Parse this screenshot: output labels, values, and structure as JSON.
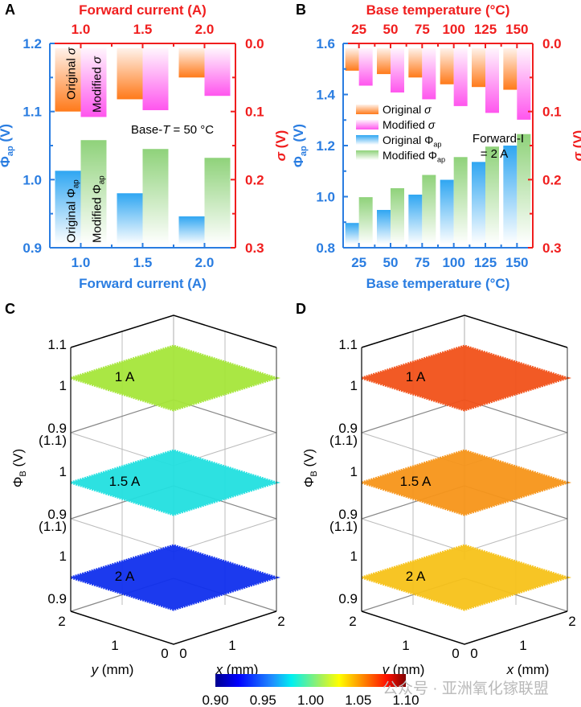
{
  "chart_data": [
    {
      "panel": "A",
      "type": "bar",
      "title": "",
      "top_xlabel": "Forward current (A)",
      "xlabel": "Forward current (A)",
      "ylabel_left": "Φap (V)",
      "ylabel_right": "σ (V)",
      "categories": [
        "1.0",
        "1.5",
        "2.0"
      ],
      "ylim_left": [
        0.9,
        1.2
      ],
      "yticks_left": [
        "0.9",
        "1.0",
        "1.1",
        "1.2"
      ],
      "ylim_right_inverted": [
        0.0,
        0.3
      ],
      "yticks_right": [
        "0.0",
        "0.1",
        "0.2",
        "0.3"
      ],
      "annotation": "Base-T = 50 °C",
      "series": [
        {
          "name": "Original σ",
          "axis": "right",
          "values": [
            0.1,
            0.082,
            0.05
          ],
          "color": "#ff7a1a"
        },
        {
          "name": "Modified σ",
          "axis": "right",
          "values": [
            0.108,
            0.098,
            0.077
          ],
          "color": "#ff55ee"
        },
        {
          "name": "Original Φap",
          "axis": "left",
          "values": [
            1.013,
            0.98,
            0.946
          ],
          "color": "#2fa6f2"
        },
        {
          "name": "Modified Φap",
          "axis": "left",
          "values": [
            1.058,
            1.045,
            1.032
          ],
          "color": "#8fd27a"
        }
      ],
      "inline_labels": [
        "Original σ",
        "Modified σ",
        "Original Φap",
        "Modified Φap"
      ]
    },
    {
      "panel": "B",
      "type": "bar",
      "top_xlabel": "Base temperature (°C)",
      "xlabel": "Base temperature (°C)",
      "ylabel_left": "Φap (V)",
      "ylabel_right": "σ (V)",
      "categories": [
        "25",
        "50",
        "75",
        "100",
        "125",
        "150"
      ],
      "ylim_left": [
        0.8,
        1.6
      ],
      "yticks_left": [
        "0.8",
        "1.0",
        "1.2",
        "1.4",
        "1.6"
      ],
      "ylim_right_inverted": [
        0.0,
        0.3
      ],
      "yticks_right": [
        "0.0",
        "0.1",
        "0.2",
        "0.3"
      ],
      "annotation": [
        "Forward-I",
        "= 2 A"
      ],
      "legend": [
        "Original σ",
        "Modified σ",
        "Original Φap",
        "Modified Φap"
      ],
      "series": [
        {
          "name": "Original σ",
          "axis": "right",
          "values": [
            0.04,
            0.045,
            0.05,
            0.06,
            0.064,
            0.068
          ],
          "color": "#ff7a1a"
        },
        {
          "name": "Modified σ",
          "axis": "right",
          "values": [
            0.062,
            0.072,
            0.082,
            0.092,
            0.102,
            0.112
          ],
          "color": "#ff55ee"
        },
        {
          "name": "Original Φap",
          "axis": "left",
          "values": [
            0.897,
            0.948,
            1.008,
            1.066,
            1.136,
            1.2
          ],
          "color": "#2fa6f2"
        },
        {
          "name": "Modified Φap",
          "axis": "left",
          "values": [
            0.998,
            1.033,
            1.085,
            1.155,
            1.196,
            1.245
          ],
          "color": "#8fd27a"
        }
      ]
    },
    {
      "panel": "C",
      "type": "surface3d",
      "zlabel": "ΦB (V)",
      "xlabel": "x (mm)",
      "ylabel": "y (mm)",
      "xticks": [
        "0",
        "1",
        "2"
      ],
      "yticks": [
        "0",
        "1",
        "2"
      ],
      "zticks": [
        "1.1",
        "1",
        "0.9\n(1.1)",
        "1",
        "0.9\n(1.1)",
        "1",
        "0.9"
      ],
      "layers": [
        {
          "label": "1 A",
          "mean": 1.02,
          "color": "#a6e63a"
        },
        {
          "label": "1.5 A",
          "mean": 0.985,
          "color": "#22e0e0"
        },
        {
          "label": "2 A",
          "mean": 0.91,
          "color": "#1030ee"
        }
      ]
    },
    {
      "panel": "D",
      "type": "surface3d",
      "zlabel": "ΦB (V)",
      "xlabel": "x (mm)",
      "ylabel": "y (mm)",
      "xticks": [
        "0",
        "1",
        "2"
      ],
      "yticks": [
        "0",
        "1",
        "2"
      ],
      "layers": [
        {
          "label": "1 A",
          "mean": 1.085,
          "color": "#f2521a"
        },
        {
          "label": "1.5 A",
          "mean": 1.07,
          "color": "#f7951a"
        },
        {
          "label": "2 A",
          "mean": 1.055,
          "color": "#f7c21a"
        }
      ]
    }
  ],
  "colorbar": {
    "ticks": [
      "0.90",
      "0.95",
      "1.00",
      "1.05",
      "1.10"
    ],
    "range": [
      0.9,
      1.1
    ],
    "colormap": "jet"
  },
  "panels": {
    "a": "A",
    "b": "B",
    "c": "C",
    "d": "D"
  },
  "watermark": "公众号 · 亚洲氧化镓联盟"
}
